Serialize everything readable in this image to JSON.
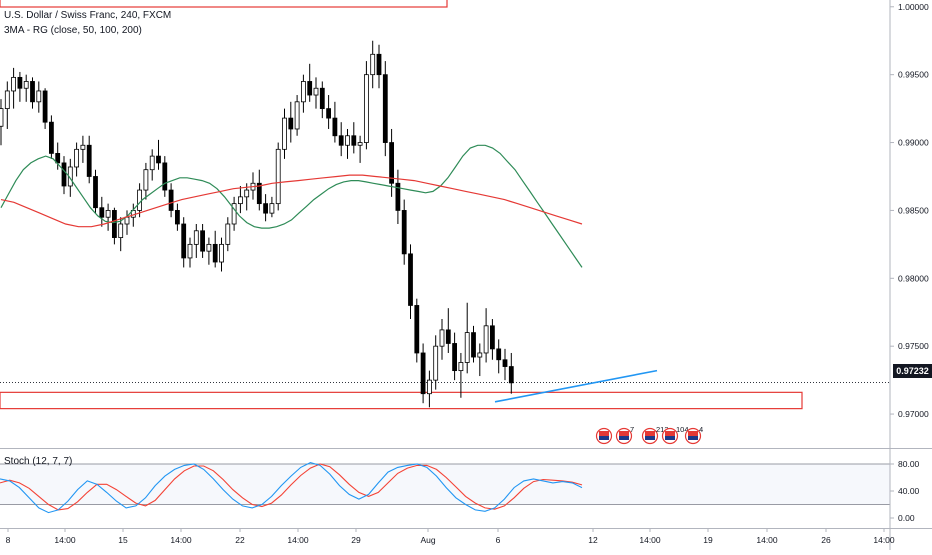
{
  "header": {
    "title": "U.S. Dollar / Swiss Franc, 240, FXCM",
    "indicator": "3MA - RG (close, 50, 100, 200)"
  },
  "price_tag": "0.97232",
  "stoch": {
    "label": "Stoch (12, 7, 7)",
    "levels": [
      "80.00",
      "40.00",
      "0.00"
    ]
  },
  "event_badges": [
    "7",
    "213",
    "104",
    "4"
  ],
  "colors": {
    "up": "#ffffff",
    "down": "#000000",
    "ma_green": "#2e8b57",
    "ma_red": "#e53935",
    "zone": "#e53935",
    "trendline": "#2196f3",
    "stoch_k": "#2196f3",
    "stoch_d": "#f44336"
  },
  "chart_data": {
    "type": "candlestick",
    "symbol": "USDCHF",
    "timeframe": "240",
    "y_ticks": [
      "1.00000",
      "0.99500",
      "0.99000",
      "0.98500",
      "0.98000",
      "0.97500",
      "0.97000"
    ],
    "ylim": [
      0.9675,
      1.0005
    ],
    "x_ticks": [
      "8",
      "14:00",
      "15",
      "14:00",
      "22",
      "14:00",
      "29",
      "Aug",
      "6",
      "12",
      "14:00",
      "19",
      "14:00",
      "26",
      "14:00"
    ],
    "last_price": 0.97232,
    "candles": [
      [
        0.9912,
        0.9932,
        0.9898,
        0.9925
      ],
      [
        0.9925,
        0.9945,
        0.991,
        0.9938
      ],
      [
        0.9938,
        0.9955,
        0.9925,
        0.9948
      ],
      [
        0.9948,
        0.9952,
        0.993,
        0.994
      ],
      [
        0.994,
        0.995,
        0.993,
        0.9945
      ],
      [
        0.9945,
        0.9948,
        0.9925,
        0.993
      ],
      [
        0.993,
        0.9945,
        0.9922,
        0.9938
      ],
      [
        0.9938,
        0.994,
        0.991,
        0.9915
      ],
      [
        0.9915,
        0.992,
        0.9888,
        0.9892
      ],
      [
        0.9892,
        0.99,
        0.988,
        0.9885
      ],
      [
        0.9885,
        0.989,
        0.9862,
        0.9868
      ],
      [
        0.9868,
        0.9888,
        0.986,
        0.9882
      ],
      [
        0.9882,
        0.99,
        0.9875,
        0.9895
      ],
      [
        0.9895,
        0.9905,
        0.9885,
        0.9898
      ],
      [
        0.9898,
        0.9905,
        0.987,
        0.9875
      ],
      [
        0.9875,
        0.988,
        0.9848,
        0.9852
      ],
      [
        0.9852,
        0.986,
        0.9838,
        0.9845
      ],
      [
        0.9845,
        0.9855,
        0.9835,
        0.985
      ],
      [
        0.985,
        0.9852,
        0.9825,
        0.983
      ],
      [
        0.983,
        0.9845,
        0.982,
        0.984
      ],
      [
        0.984,
        0.985,
        0.9832,
        0.9845
      ],
      [
        0.9845,
        0.9855,
        0.9838,
        0.985
      ],
      [
        0.985,
        0.987,
        0.9845,
        0.9865
      ],
      [
        0.9865,
        0.9885,
        0.9858,
        0.988
      ],
      [
        0.988,
        0.9895,
        0.9872,
        0.989
      ],
      [
        0.989,
        0.9902,
        0.988,
        0.9885
      ],
      [
        0.9885,
        0.989,
        0.986,
        0.9865
      ],
      [
        0.9865,
        0.987,
        0.9845,
        0.985
      ],
      [
        0.985,
        0.9855,
        0.9835,
        0.984
      ],
      [
        0.984,
        0.9845,
        0.9808,
        0.9815
      ],
      [
        0.9815,
        0.983,
        0.9808,
        0.9825
      ],
      [
        0.9825,
        0.984,
        0.9815,
        0.9835
      ],
      [
        0.9835,
        0.984,
        0.9815,
        0.982
      ],
      [
        0.982,
        0.983,
        0.981,
        0.9825
      ],
      [
        0.9825,
        0.9835,
        0.9808,
        0.9812
      ],
      [
        0.9812,
        0.983,
        0.9805,
        0.9825
      ],
      [
        0.9825,
        0.9845,
        0.982,
        0.984
      ],
      [
        0.984,
        0.986,
        0.9835,
        0.9855
      ],
      [
        0.9855,
        0.9868,
        0.9848,
        0.986
      ],
      [
        0.986,
        0.987,
        0.985,
        0.9865
      ],
      [
        0.9865,
        0.9878,
        0.9858,
        0.987
      ],
      [
        0.987,
        0.988,
        0.985,
        0.9855
      ],
      [
        0.9855,
        0.9862,
        0.9842,
        0.9848
      ],
      [
        0.9848,
        0.986,
        0.9845,
        0.9855
      ],
      [
        0.9855,
        0.99,
        0.985,
        0.9895
      ],
      [
        0.9895,
        0.9925,
        0.9888,
        0.9918
      ],
      [
        0.9918,
        0.993,
        0.99,
        0.991
      ],
      [
        0.991,
        0.9935,
        0.9905,
        0.993
      ],
      [
        0.993,
        0.995,
        0.9922,
        0.9945
      ],
      [
        0.9945,
        0.9958,
        0.993,
        0.9935
      ],
      [
        0.9935,
        0.9948,
        0.9925,
        0.994
      ],
      [
        0.994,
        0.9945,
        0.9918,
        0.9925
      ],
      [
        0.9925,
        0.9935,
        0.991,
        0.9918
      ],
      [
        0.9918,
        0.993,
        0.99,
        0.9905
      ],
      [
        0.9905,
        0.9915,
        0.989,
        0.9898
      ],
      [
        0.9898,
        0.991,
        0.9888,
        0.9905
      ],
      [
        0.9905,
        0.9915,
        0.9892,
        0.9898
      ],
      [
        0.9898,
        0.9905,
        0.9885,
        0.99
      ],
      [
        0.99,
        0.996,
        0.9895,
        0.995
      ],
      [
        0.995,
        0.9975,
        0.994,
        0.9965
      ],
      [
        0.9965,
        0.9972,
        0.994,
        0.995
      ],
      [
        0.995,
        0.996,
        0.989,
        0.99
      ],
      [
        0.99,
        0.991,
        0.986,
        0.987
      ],
      [
        0.987,
        0.988,
        0.984,
        0.985
      ],
      [
        0.985,
        0.9858,
        0.981,
        0.9818
      ],
      [
        0.9818,
        0.9825,
        0.977,
        0.978
      ],
      [
        0.978,
        0.9785,
        0.9738,
        0.9745
      ],
      [
        0.9745,
        0.9752,
        0.9708,
        0.9715
      ],
      [
        0.9715,
        0.9732,
        0.9705,
        0.9725
      ],
      [
        0.9725,
        0.9758,
        0.9718,
        0.975
      ],
      [
        0.975,
        0.977,
        0.974,
        0.9762
      ],
      [
        0.9762,
        0.9778,
        0.9745,
        0.9752
      ],
      [
        0.9752,
        0.976,
        0.9725,
        0.9732
      ],
      [
        0.9732,
        0.9745,
        0.9712,
        0.9738
      ],
      [
        0.9738,
        0.9782,
        0.973,
        0.976
      ],
      [
        0.976,
        0.9765,
        0.9738,
        0.9742
      ],
      [
        0.9742,
        0.9752,
        0.9728,
        0.9745
      ],
      [
        0.9745,
        0.9778,
        0.9738,
        0.9765
      ],
      [
        0.9765,
        0.977,
        0.974,
        0.9748
      ],
      [
        0.9748,
        0.9755,
        0.973,
        0.974
      ],
      [
        0.974,
        0.9748,
        0.9725,
        0.9735
      ],
      [
        0.9735,
        0.9745,
        0.9715,
        0.9723
      ]
    ],
    "ma_50": [
      0.9852,
      0.9862,
      0.9872,
      0.988,
      0.9885,
      0.9888,
      0.989,
      0.9888,
      0.9882,
      0.9876,
      0.9868,
      0.986,
      0.9852,
      0.9846,
      0.9842,
      0.9841,
      0.9842,
      0.9846,
      0.9852,
      0.9858,
      0.9862,
      0.9866,
      0.987,
      0.9872,
      0.9874,
      0.9874,
      0.9873,
      0.9872,
      0.987,
      0.9866,
      0.986,
      0.9853,
      0.9846,
      0.9841,
      0.9838,
      0.9837,
      0.9837,
      0.9838,
      0.984,
      0.9843,
      0.9848,
      0.9853,
      0.9858,
      0.9862,
      0.9866,
      0.9869,
      0.9871,
      0.9872,
      0.9872,
      0.9871,
      0.987,
      0.9869,
      0.9868,
      0.9867,
      0.9866,
      0.9865,
      0.9864,
      0.9863,
      0.9864,
      0.9868,
      0.9874,
      0.9882,
      0.989,
      0.9896,
      0.9898,
      0.9898,
      0.9896,
      0.9892,
      0.9886,
      0.988,
      0.9872,
      0.9864,
      0.9856,
      0.9848,
      0.984,
      0.9832,
      0.9824,
      0.9816,
      0.9808
    ],
    "ma_100": [
      0.9858,
      0.9856,
      0.9852,
      0.9848,
      0.9844,
      0.984,
      0.9838,
      0.9838,
      0.984,
      0.9843,
      0.9846,
      0.9849,
      0.9852,
      0.9855,
      0.9858,
      0.986,
      0.9862,
      0.9864,
      0.9866,
      0.9867,
      0.9868,
      0.987,
      0.9871,
      0.9872,
      0.9873,
      0.9874,
      0.9875,
      0.9876,
      0.9876,
      0.9875,
      0.9874,
      0.9873,
      0.9872,
      0.987,
      0.9868,
      0.9866,
      0.9864,
      0.9862,
      0.986,
      0.9858,
      0.9855,
      0.9852,
      0.9849,
      0.9846,
      0.9843,
      0.984
    ],
    "ma_start_index": {
      "ma_50": 0,
      "ma_100": 0
    },
    "zones": [
      {
        "top": 0.9716,
        "bottom": 0.9704
      },
      {
        "top_out_of_view": true
      }
    ],
    "trendline": {
      "from": [
        54,
        0.9709
      ],
      "to": [
        87,
        0.9732
      ]
    },
    "stoch_k": [
      58,
      55,
      45,
      30,
      15,
      8,
      12,
      25,
      42,
      55,
      50,
      38,
      25,
      15,
      18,
      30,
      48,
      62,
      72,
      78,
      80,
      72,
      58,
      42,
      28,
      18,
      15,
      20,
      32,
      48,
      62,
      75,
      82,
      78,
      65,
      48,
      35,
      28,
      35,
      52,
      68,
      75,
      78,
      80,
      75,
      62,
      45,
      30,
      20,
      12,
      10,
      15,
      28,
      45,
      55,
      58,
      55,
      52,
      54,
      52,
      45
    ],
    "stoch_d": [
      52,
      56,
      52,
      44,
      32,
      20,
      12,
      14,
      24,
      38,
      50,
      50,
      42,
      32,
      22,
      18,
      26,
      42,
      58,
      70,
      77,
      77,
      70,
      57,
      42,
      30,
      20,
      17,
      22,
      34,
      49,
      63,
      74,
      80,
      76,
      64,
      50,
      38,
      32,
      38,
      52,
      66,
      74,
      78,
      78,
      72,
      60,
      46,
      32,
      22,
      15,
      13,
      18,
      30,
      44,
      54,
      57,
      56,
      55,
      53,
      49
    ]
  }
}
